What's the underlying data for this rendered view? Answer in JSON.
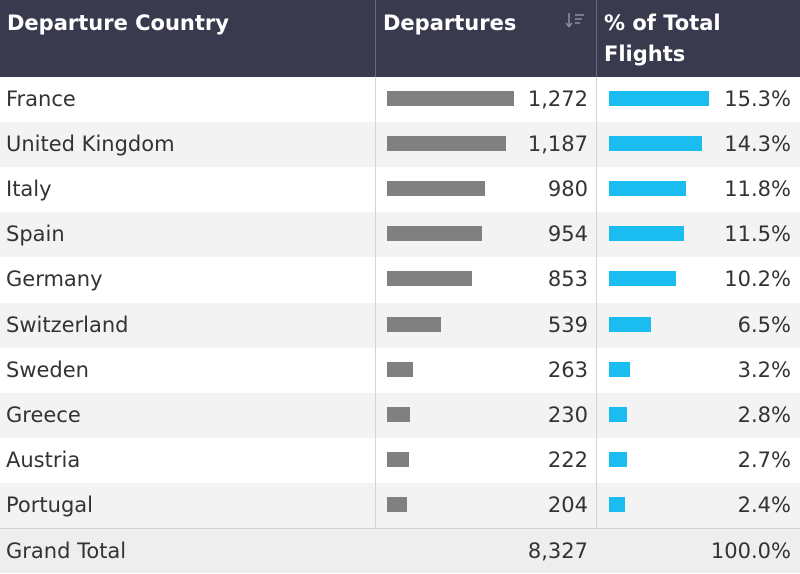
{
  "header": {
    "country_label": "Departure Country",
    "departures_label": "Departures",
    "pct_label": "% of Total Flights",
    "sort_icon": "sort-descending-icon"
  },
  "colors": {
    "header_bg": "#3a3a4e",
    "departures_bar": "#808080",
    "pct_bar": "#1bbdf0"
  },
  "rows": [
    {
      "country": "France",
      "departures": "1,272",
      "pct": "15.3%"
    },
    {
      "country": "United Kingdom",
      "departures": "1,187",
      "pct": "14.3%"
    },
    {
      "country": "Italy",
      "departures": "980",
      "pct": "11.8%"
    },
    {
      "country": "Spain",
      "departures": "954",
      "pct": "11.5%"
    },
    {
      "country": "Germany",
      "departures": "853",
      "pct": "10.2%"
    },
    {
      "country": "Switzerland",
      "departures": "539",
      "pct": "6.5%"
    },
    {
      "country": "Sweden",
      "departures": "263",
      "pct": "3.2%"
    },
    {
      "country": "Greece",
      "departures": "230",
      "pct": "2.8%"
    },
    {
      "country": "Austria",
      "departures": "222",
      "pct": "2.7%"
    },
    {
      "country": "Portugal",
      "departures": "204",
      "pct": "2.4%"
    }
  ],
  "total": {
    "label": "Grand Total",
    "departures": "8,327",
    "pct": "100.0%"
  },
  "chart_data": {
    "type": "table",
    "columns": [
      "Departure Country",
      "Departures",
      "% of Total Flights"
    ],
    "categories": [
      "France",
      "United Kingdom",
      "Italy",
      "Spain",
      "Germany",
      "Switzerland",
      "Sweden",
      "Greece",
      "Austria",
      "Portugal"
    ],
    "series": [
      {
        "name": "Departures",
        "values": [
          1272,
          1187,
          980,
          954,
          853,
          539,
          263,
          230,
          222,
          204
        ]
      },
      {
        "name": "% of Total Flights",
        "values": [
          15.3,
          14.3,
          11.8,
          11.5,
          10.2,
          6.5,
          3.2,
          2.8,
          2.7,
          2.4
        ]
      }
    ],
    "total": {
      "Departures": 8327,
      "% of Total Flights": 100.0
    }
  }
}
